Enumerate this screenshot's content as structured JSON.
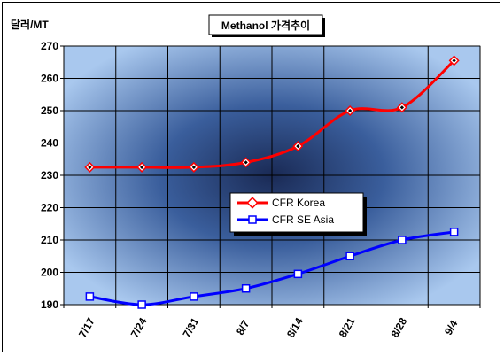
{
  "chart_data": {
    "type": "line",
    "title": "Methanol 가격추이",
    "ylabel": "달러/MT",
    "xlabel": "",
    "categories": [
      "7/17",
      "7/24",
      "7/31",
      "8/7",
      "8/14",
      "8/21",
      "8/28",
      "9/4"
    ],
    "ylim": [
      190,
      270
    ],
    "yticks": [
      190,
      200,
      210,
      220,
      230,
      240,
      250,
      260,
      270
    ],
    "grid": true,
    "legend_position": "center-right",
    "series": [
      {
        "name": "CFR Korea",
        "values": [
          232.5,
          232.5,
          232.5,
          234,
          239,
          250,
          251,
          265.5
        ],
        "color": "#ff0000",
        "marker": "diamond"
      },
      {
        "name": "CFR SE Asia",
        "values": [
          192.5,
          190,
          192.5,
          195,
          199.5,
          205,
          210,
          212.5
        ],
        "color": "#0000ff",
        "marker": "square"
      }
    ]
  }
}
